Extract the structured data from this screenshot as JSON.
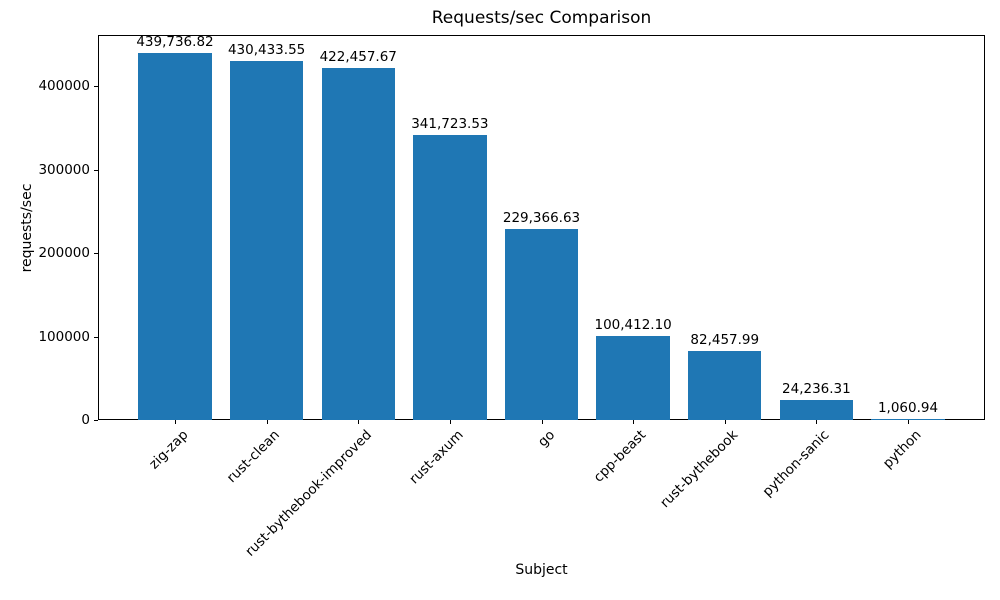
{
  "chart_data": {
    "type": "bar",
    "title": "Requests/sec Comparison",
    "xlabel": "Subject",
    "ylabel": "requests/sec",
    "categories": [
      "zig-zap",
      "rust-clean",
      "rust-bythebook-improved",
      "rust-axum",
      "go",
      "cpp-beast",
      "rust-bythebook",
      "python-sanic",
      "python"
    ],
    "values": [
      439736.82,
      430433.55,
      422457.67,
      341723.53,
      229366.63,
      100412.1,
      82457.99,
      24236.31,
      1060.94
    ],
    "value_labels": [
      "439,736.82",
      "430,433.55",
      "422,457.67",
      "341,723.53",
      "229,366.63",
      "100,412.10",
      "82,457.99",
      "24,236.31",
      "1,060.94"
    ],
    "yticks": [
      0,
      100000,
      200000,
      300000,
      400000
    ],
    "ytick_labels": [
      "0",
      "100000",
      "200000",
      "300000",
      "400000"
    ],
    "ylim": [
      0,
      461723.66
    ],
    "bar_color": "#1f77b4",
    "grid": "off",
    "legend": "none"
  }
}
